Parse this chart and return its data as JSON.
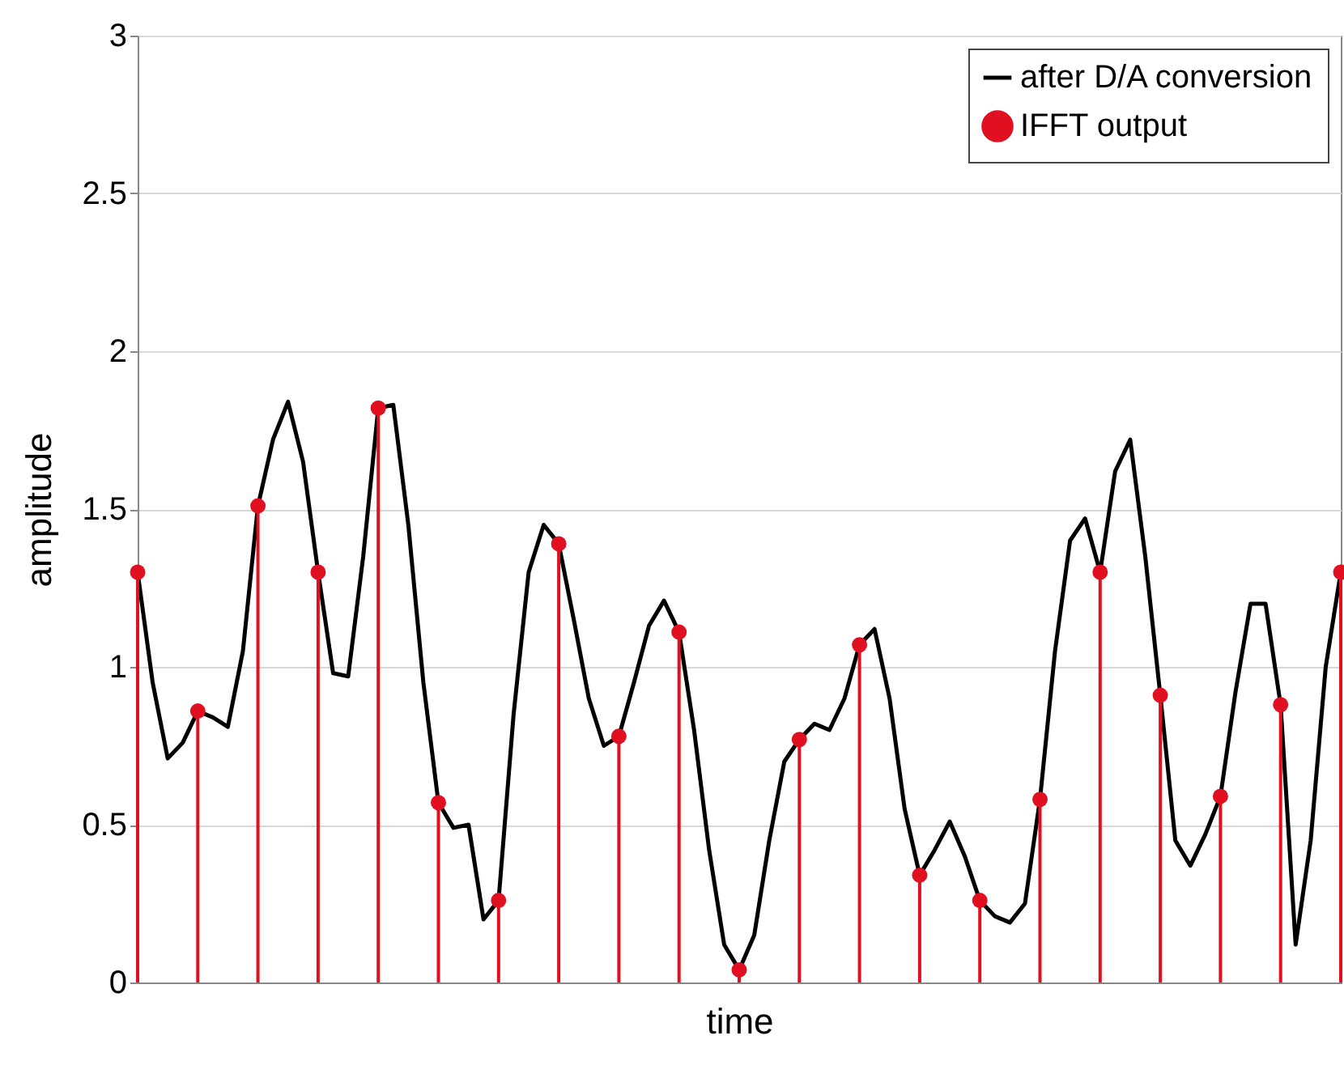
{
  "chart_data": {
    "type": "line",
    "xlabel": "time",
    "ylabel": "amplitude",
    "categories": [
      null,
      null,
      null,
      null,
      null,
      null,
      null,
      null,
      null,
      null,
      null,
      null,
      null,
      null,
      null,
      null,
      null,
      null,
      null,
      null,
      null,
      null,
      null,
      null,
      null,
      null,
      null,
      null,
      null,
      null,
      null,
      null,
      null,
      null,
      null,
      null,
      null,
      null,
      null,
      null,
      null,
      null,
      null,
      null,
      null,
      null,
      null,
      null,
      null,
      null,
      null,
      null,
      null,
      null,
      null,
      null,
      null,
      null,
      null,
      null,
      null,
      null,
      null,
      null,
      null,
      null,
      null,
      null,
      null,
      null,
      null,
      null,
      null,
      null,
      null,
      null,
      null,
      null,
      null,
      null,
      null
    ],
    "ylim": [
      0,
      3
    ],
    "yticks": [
      0,
      0.5,
      1,
      1.5,
      2,
      2.5,
      3
    ],
    "grid": "y",
    "legend": "top right",
    "series": [
      {
        "name": "after D/A conversion",
        "color": "#000000",
        "values": [
          1.3,
          0.95,
          0.71,
          0.76,
          0.86,
          0.84,
          0.81,
          1.05,
          1.51,
          1.72,
          1.84,
          1.65,
          1.3,
          0.98,
          0.97,
          1.35,
          1.82,
          1.83,
          1.45,
          0.95,
          0.57,
          0.49,
          0.5,
          0.2,
          0.26,
          0.85,
          1.3,
          1.45,
          1.39,
          1.15,
          0.9,
          0.75,
          0.78,
          0.95,
          1.13,
          1.21,
          1.11,
          0.8,
          0.42,
          0.12,
          0.04,
          0.15,
          0.45,
          0.7,
          0.77,
          0.82,
          0.8,
          0.9,
          1.07,
          1.12,
          0.9,
          0.55,
          0.34,
          0.42,
          0.51,
          0.4,
          0.26,
          0.21,
          0.19,
          0.25,
          0.58,
          1.05,
          1.4,
          1.47,
          1.3,
          1.62,
          1.72,
          1.35,
          0.91,
          0.45,
          0.37,
          0.47,
          0.59,
          0.92,
          1.2,
          1.2,
          0.88,
          0.12,
          0.45,
          1.0,
          1.3
        ]
      },
      {
        "type": "lollipop",
        "name": "IFFT output",
        "color": "#e01020",
        "marker": "circle",
        "values": [
          1.3,
          null,
          null,
          null,
          0.86,
          null,
          null,
          null,
          1.51,
          null,
          null,
          null,
          1.3,
          null,
          null,
          null,
          1.82,
          null,
          null,
          null,
          0.57,
          null,
          null,
          null,
          0.26,
          null,
          null,
          null,
          1.39,
          null,
          null,
          null,
          0.78,
          null,
          null,
          null,
          1.11,
          null,
          null,
          null,
          0.04,
          null,
          null,
          null,
          0.77,
          null,
          null,
          null,
          1.07,
          null,
          null,
          null,
          0.34,
          null,
          null,
          null,
          0.26,
          null,
          null,
          null,
          0.58,
          null,
          null,
          null,
          1.3,
          null,
          null,
          null,
          0.91,
          null,
          null,
          null,
          0.59,
          null,
          null,
          null,
          0.88,
          null,
          null,
          null,
          1.3
        ]
      }
    ]
  }
}
